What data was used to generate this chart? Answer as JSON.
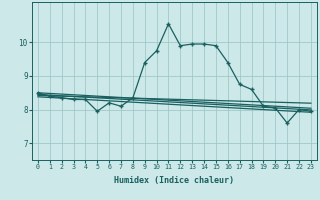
{
  "xlabel": "Humidex (Indice chaleur)",
  "background_color": "#cde8e8",
  "grid_color": "#a0c8c8",
  "line_color": "#1a6060",
  "x_values": [
    0,
    1,
    2,
    3,
    4,
    5,
    6,
    7,
    8,
    9,
    10,
    11,
    12,
    13,
    14,
    15,
    16,
    17,
    18,
    19,
    20,
    21,
    22,
    23
  ],
  "y_main": [
    8.5,
    8.4,
    8.35,
    8.3,
    8.3,
    7.95,
    8.2,
    8.1,
    8.35,
    9.4,
    9.75,
    10.55,
    9.9,
    9.95,
    9.95,
    9.9,
    9.4,
    8.75,
    8.6,
    8.1,
    8.05,
    7.6,
    8.0,
    7.95
  ],
  "y_trend1": [
    8.42,
    8.41,
    8.4,
    8.39,
    8.38,
    8.37,
    8.36,
    8.35,
    8.34,
    8.33,
    8.32,
    8.31,
    8.3,
    8.29,
    8.28,
    8.27,
    8.26,
    8.25,
    8.24,
    8.23,
    8.22,
    8.21,
    8.2,
    8.19
  ],
  "y_trend2": [
    8.38,
    8.36,
    8.34,
    8.32,
    8.3,
    8.28,
    8.26,
    8.24,
    8.22,
    8.2,
    8.18,
    8.16,
    8.14,
    8.12,
    8.1,
    8.08,
    8.06,
    8.04,
    8.02,
    8.0,
    7.98,
    7.96,
    7.94,
    7.92
  ],
  "y_trend3": [
    8.45,
    8.43,
    8.41,
    8.39,
    8.37,
    8.35,
    8.33,
    8.31,
    8.29,
    8.27,
    8.25,
    8.23,
    8.21,
    8.19,
    8.17,
    8.15,
    8.13,
    8.11,
    8.09,
    8.07,
    8.05,
    8.03,
    8.01,
    7.99
  ],
  "y_trend4": [
    8.5,
    8.48,
    8.46,
    8.44,
    8.42,
    8.4,
    8.38,
    8.36,
    8.34,
    8.32,
    8.3,
    8.28,
    8.26,
    8.24,
    8.22,
    8.2,
    8.18,
    8.16,
    8.14,
    8.12,
    8.1,
    8.08,
    8.06,
    8.04
  ],
  "ylim": [
    6.5,
    11.2
  ],
  "yticks": [
    7,
    8,
    9,
    10
  ],
  "xticks": [
    0,
    1,
    2,
    3,
    4,
    5,
    6,
    7,
    8,
    9,
    10,
    11,
    12,
    13,
    14,
    15,
    16,
    17,
    18,
    19,
    20,
    21,
    22,
    23
  ]
}
